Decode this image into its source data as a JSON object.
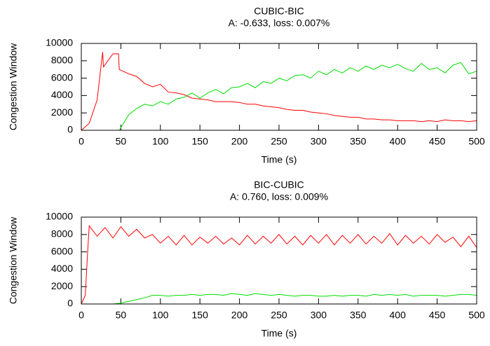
{
  "chart_data": [
    {
      "type": "line",
      "title": "CUBIC-BIC",
      "subtitle": "A: -0.633, loss: 0.007%",
      "x_label": "Time (s)",
      "y_label": "Congestion Window",
      "x": [
        0,
        10,
        20,
        27,
        28,
        40,
        47,
        48,
        60,
        70,
        80,
        90,
        100,
        110,
        120,
        130,
        140,
        150,
        160,
        170,
        180,
        190,
        200,
        210,
        220,
        230,
        240,
        250,
        260,
        270,
        280,
        290,
        300,
        310,
        320,
        330,
        340,
        350,
        360,
        370,
        380,
        390,
        400,
        410,
        420,
        430,
        440,
        450,
        460,
        470,
        480,
        490,
        500
      ],
      "series": [
        {
          "color": "#ff0000",
          "values": [
            0,
            800,
            3500,
            9000,
            7300,
            8800,
            8800,
            7000,
            6500,
            6200,
            5400,
            5000,
            5300,
            4400,
            4300,
            4100,
            3700,
            3600,
            3500,
            3300,
            3300,
            3300,
            3200,
            3000,
            3000,
            2800,
            2700,
            2600,
            2400,
            2300,
            2300,
            2100,
            2000,
            1900,
            1700,
            1600,
            1500,
            1500,
            1300,
            1300,
            1200,
            1200,
            1100,
            1100,
            1100,
            1000,
            1100,
            1000,
            1200,
            1100,
            1100,
            1000,
            1100
          ]
        },
        {
          "color": "#00dd00",
          "values": [
            0,
            0,
            0,
            0,
            0,
            0,
            0,
            0,
            1800,
            2500,
            3000,
            2800,
            3300,
            3000,
            3600,
            3800,
            4300,
            3700,
            4300,
            4700,
            4200,
            4900,
            5000,
            5400,
            4900,
            5600,
            5400,
            6000,
            5700,
            6300,
            6400,
            6000,
            6800,
            6400,
            7000,
            6600,
            7200,
            6800,
            7400,
            7000,
            7500,
            7200,
            7600,
            7100,
            6800,
            7700,
            7000,
            7200,
            6600,
            7500,
            7800,
            6500,
            6800
          ]
        }
      ],
      "xlim": [
        0,
        500
      ],
      "xticks": [
        0,
        50,
        100,
        150,
        200,
        250,
        300,
        350,
        400,
        450,
        500
      ],
      "ylim": [
        0,
        10000
      ],
      "yticks": [
        0,
        2000,
        4000,
        6000,
        8000,
        10000
      ]
    },
    {
      "type": "line",
      "title": "BIC-CUBIC",
      "subtitle": "A: 0.760, loss: 0.009%",
      "x_label": "Time (s)",
      "y_label": "Congestion Window",
      "x": [
        0,
        5,
        8,
        10,
        20,
        30,
        40,
        50,
        60,
        70,
        80,
        90,
        100,
        110,
        120,
        130,
        140,
        150,
        160,
        170,
        180,
        190,
        200,
        210,
        220,
        230,
        240,
        250,
        260,
        270,
        280,
        290,
        300,
        310,
        320,
        330,
        340,
        350,
        360,
        370,
        380,
        390,
        400,
        410,
        420,
        430,
        440,
        450,
        460,
        470,
        480,
        490,
        500
      ],
      "series": [
        {
          "color": "#ff0000",
          "values": [
            0,
            1000,
            6000,
            9000,
            7800,
            8800,
            7600,
            8900,
            7800,
            8600,
            7600,
            8000,
            7000,
            7800,
            6800,
            7900,
            6800,
            7700,
            7000,
            7800,
            6900,
            7600,
            6800,
            7900,
            6900,
            7800,
            7000,
            8000,
            6900,
            7800,
            6800,
            7900,
            7000,
            8000,
            6800,
            7900,
            7000,
            8000,
            6900,
            7800,
            7000,
            8100,
            6800,
            7900,
            7000,
            7800,
            6900,
            8000,
            7100,
            7700,
            6600,
            7800,
            6500
          ]
        },
        {
          "color": "#00dd00",
          "values": [
            0,
            0,
            0,
            0,
            0,
            0,
            0,
            100,
            300,
            500,
            700,
            1000,
            1000,
            900,
            1000,
            1000,
            1100,
            1000,
            1100,
            1100,
            1000,
            1200,
            1100,
            1000,
            1200,
            1100,
            1000,
            1100,
            1000,
            900,
            1000,
            1000,
            900,
            900,
            1000,
            900,
            1000,
            1000,
            900,
            1100,
            1000,
            1100,
            1000,
            1100,
            900,
            1000,
            1000,
            1000,
            900,
            1000,
            1100,
            1100,
            1000
          ]
        }
      ],
      "xlim": [
        0,
        500
      ],
      "xticks": [
        0,
        50,
        100,
        150,
        200,
        250,
        300,
        350,
        400,
        450,
        500
      ],
      "ylim": [
        0,
        10000
      ],
      "yticks": [
        0,
        2000,
        4000,
        6000,
        8000,
        10000
      ]
    }
  ]
}
